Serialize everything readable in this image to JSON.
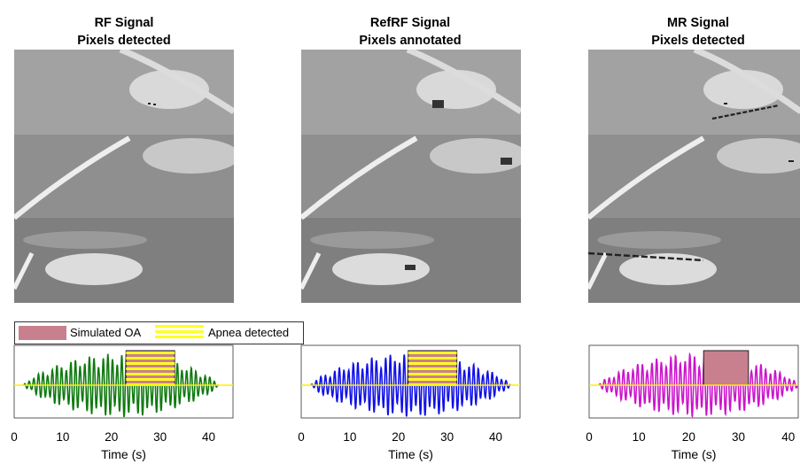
{
  "panels": [
    {
      "title_line1": "RF Signal",
      "title_line2": "Pixels detected",
      "color": "#0f7a0f",
      "seed": 3
    },
    {
      "title_line1": "RefRF Signal",
      "title_line2": "Pixels annotated",
      "color": "#1010e8",
      "seed": 7
    },
    {
      "title_line1": "MR Signal",
      "title_line2": "Pixels detected",
      "color": "#cc14cc",
      "seed": 11
    }
  ],
  "legend": {
    "simulated_label": "Simulated OA",
    "apnea_label": "Apnea detected",
    "simulated_color": "#c8808e",
    "apnea_color": "#ffff22"
  },
  "chart_data": [
    {
      "type": "line",
      "title": "RF Signal",
      "xlabel": "Time (s)",
      "xlim": [
        0,
        45
      ],
      "xticks": [
        "0",
        "10",
        "20",
        "30",
        "40"
      ],
      "series": [
        {
          "x_range": [
            2,
            42
          ],
          "envelope": "amplitude-modulated oscillation"
        }
      ],
      "simulated_oa": [
        23,
        33
      ],
      "apnea_detected": [
        23,
        33
      ]
    },
    {
      "type": "line",
      "title": "RefRF Signal",
      "xlabel": "Time (s)",
      "xlim": [
        0,
        45
      ],
      "xticks": [
        "0",
        "10",
        "20",
        "30",
        "40"
      ],
      "series": [
        {
          "x_range": [
            2,
            43
          ],
          "envelope": "amplitude-modulated oscillation"
        }
      ],
      "simulated_oa": [
        22,
        32
      ],
      "apnea_detected": [
        22,
        32
      ]
    },
    {
      "type": "line",
      "title": "MR Signal",
      "xlabel": "Time (s)",
      "xlim": [
        0,
        42
      ],
      "xticks": [
        "0",
        "10",
        "20",
        "30",
        "40"
      ],
      "series": [
        {
          "x_range": [
            2,
            42
          ],
          "envelope": "amplitude-modulated oscillation"
        }
      ],
      "simulated_oa": [
        23,
        32
      ],
      "apnea_detected": []
    }
  ]
}
